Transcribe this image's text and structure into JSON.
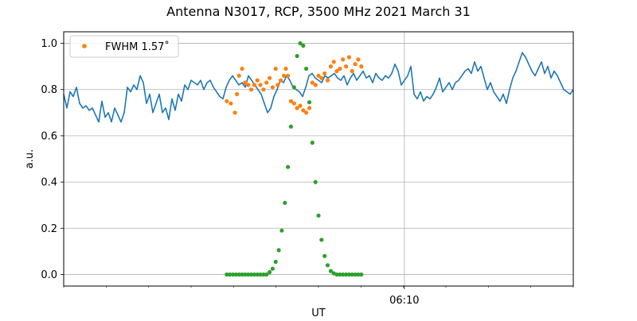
{
  "chart_data": {
    "type": "line",
    "title": "Antenna N3017, RCP, 3500 MHz 2021 March 31",
    "xlabel": "UT",
    "ylabel": "a.u.",
    "x_tick_label": "06:10",
    "x_tick_value": 0.6685,
    "xlim": [
      0,
      1
    ],
    "ylim": [
      -0.05,
      1.05
    ],
    "y_ticks": [
      0.0,
      0.2,
      0.4,
      0.6,
      0.8,
      1.0
    ],
    "y_tick_labels": [
      "0.0",
      "0.2",
      "0.4",
      "0.6",
      "0.8",
      "1.0"
    ],
    "grid": true,
    "legend": {
      "label": "FWHM 1.57˚",
      "placement": "top-left"
    },
    "colors": {
      "line": "#1f77b4",
      "fwhm": "#ff7f0e",
      "beam": "#2ca02c",
      "grid": "#b0b0b0"
    },
    "series": [
      {
        "kind": "line",
        "color": "#1f77b4",
        "x": [
          0.0,
          0.0063,
          0.0125,
          0.0188,
          0.025,
          0.0313,
          0.0375,
          0.0438,
          0.05,
          0.0563,
          0.0625,
          0.0688,
          0.075,
          0.0813,
          0.0875,
          0.0938,
          0.1,
          0.1063,
          0.1125,
          0.1188,
          0.125,
          0.1313,
          0.1375,
          0.1438,
          0.15,
          0.1563,
          0.1625,
          0.1688,
          0.175,
          0.1813,
          0.1875,
          0.1938,
          0.2,
          0.2063,
          0.2125,
          0.2188,
          0.225,
          0.2313,
          0.2375,
          0.2438,
          0.25,
          0.2563,
          0.2625,
          0.2688,
          0.275,
          0.2813,
          0.2875,
          0.2938,
          0.3,
          0.3063,
          0.3125,
          0.3188,
          0.325,
          0.3313,
          0.3375,
          0.3438,
          0.35,
          0.3563,
          0.3625,
          0.3688,
          0.375,
          0.3813,
          0.3875,
          0.3938,
          0.4,
          0.4063,
          0.4125,
          0.4188,
          0.425,
          0.4313,
          0.4375,
          0.4438,
          0.45,
          0.4563,
          0.4625,
          0.4688,
          0.475,
          0.4813,
          0.4875,
          0.4938,
          0.5,
          0.5063,
          0.5125,
          0.5188,
          0.525,
          0.5313,
          0.5375,
          0.5438,
          0.55,
          0.5563,
          0.5625,
          0.5688,
          0.575,
          0.5813,
          0.5875,
          0.5938,
          0.6,
          0.6063,
          0.6125,
          0.6188,
          0.625,
          0.6313,
          0.6375,
          0.6438,
          0.65,
          0.6563,
          0.6625,
          0.6688,
          0.675,
          0.6813,
          0.6875,
          0.6938,
          0.7,
          0.7063,
          0.7125,
          0.7188,
          0.725,
          0.7313,
          0.7375,
          0.7438,
          0.75,
          0.7563,
          0.7625,
          0.7688,
          0.775,
          0.7813,
          0.7875,
          0.7938,
          0.8,
          0.8063,
          0.8125,
          0.8188,
          0.825,
          0.8313,
          0.8375,
          0.8438,
          0.85,
          0.8563,
          0.8625,
          0.8688,
          0.875,
          0.8813,
          0.8875,
          0.8938,
          0.9,
          0.9063,
          0.9125,
          0.9188,
          0.925,
          0.9313,
          0.9375,
          0.9438,
          0.95,
          0.9563,
          0.9625,
          0.9688,
          0.975,
          0.9813,
          0.9875,
          0.9938,
          1.0
        ],
        "y": [
          0.78,
          0.72,
          0.79,
          0.77,
          0.81,
          0.74,
          0.72,
          0.73,
          0.71,
          0.72,
          0.69,
          0.66,
          0.75,
          0.68,
          0.7,
          0.66,
          0.72,
          0.69,
          0.66,
          0.7,
          0.81,
          0.79,
          0.82,
          0.8,
          0.86,
          0.83,
          0.74,
          0.78,
          0.7,
          0.74,
          0.78,
          0.7,
          0.72,
          0.67,
          0.76,
          0.71,
          0.78,
          0.75,
          0.82,
          0.8,
          0.84,
          0.83,
          0.82,
          0.84,
          0.8,
          0.83,
          0.84,
          0.81,
          0.79,
          0.77,
          0.76,
          0.81,
          0.84,
          0.86,
          0.84,
          0.82,
          0.83,
          0.81,
          0.86,
          0.84,
          0.82,
          0.8,
          0.78,
          0.74,
          0.7,
          0.72,
          0.77,
          0.8,
          0.84,
          0.83,
          0.86,
          0.84,
          0.81,
          0.8,
          0.79,
          0.77,
          0.81,
          0.86,
          0.87,
          0.85,
          0.84,
          0.83,
          0.86,
          0.85,
          0.86,
          0.87,
          0.85,
          0.84,
          0.86,
          0.82,
          0.85,
          0.87,
          0.84,
          0.86,
          0.88,
          0.85,
          0.86,
          0.83,
          0.87,
          0.85,
          0.84,
          0.86,
          0.85,
          0.87,
          0.91,
          0.88,
          0.82,
          0.84,
          0.86,
          0.9,
          0.78,
          0.76,
          0.79,
          0.75,
          0.77,
          0.76,
          0.78,
          0.81,
          0.85,
          0.79,
          0.81,
          0.83,
          0.8,
          0.83,
          0.84,
          0.86,
          0.88,
          0.89,
          0.87,
          0.92,
          0.88,
          0.9,
          0.85,
          0.8,
          0.83,
          0.79,
          0.77,
          0.75,
          0.78,
          0.74,
          0.8,
          0.85,
          0.88,
          0.92,
          0.96,
          0.94,
          0.91,
          0.88,
          0.86,
          0.89,
          0.92,
          0.87,
          0.9,
          0.85,
          0.88,
          0.86,
          0.83,
          0.8,
          0.79,
          0.78,
          0.8
        ]
      },
      {
        "kind": "scatter",
        "name": "FWHM 1.57˚",
        "color": "#ff7f0e",
        "x": [
          0.32,
          0.328,
          0.336,
          0.34,
          0.344,
          0.35,
          0.356,
          0.362,
          0.368,
          0.374,
          0.38,
          0.386,
          0.392,
          0.398,
          0.404,
          0.41,
          0.416,
          0.42,
          0.426,
          0.432,
          0.436,
          0.44,
          0.446,
          0.452,
          0.458,
          0.464,
          0.47,
          0.476,
          0.482,
          0.488,
          0.494,
          0.5,
          0.506,
          0.512,
          0.518,
          0.524,
          0.53,
          0.536,
          0.542,
          0.548,
          0.554,
          0.56,
          0.566,
          0.572,
          0.578,
          0.584
        ],
        "y": [
          0.75,
          0.74,
          0.7,
          0.78,
          0.86,
          0.89,
          0.83,
          0.82,
          0.8,
          0.82,
          0.84,
          0.82,
          0.8,
          0.83,
          0.85,
          0.81,
          0.89,
          0.82,
          0.84,
          0.86,
          0.89,
          0.86,
          0.75,
          0.74,
          0.72,
          0.73,
          0.71,
          0.7,
          0.72,
          0.83,
          0.82,
          0.86,
          0.85,
          0.87,
          0.84,
          0.9,
          0.92,
          0.88,
          0.89,
          0.93,
          0.9,
          0.94,
          0.88,
          0.91,
          0.93,
          0.9
        ]
      },
      {
        "kind": "scatter",
        "color": "#2ca02c",
        "x": [
          0.32,
          0.326,
          0.332,
          0.338,
          0.344,
          0.35,
          0.356,
          0.362,
          0.368,
          0.374,
          0.38,
          0.386,
          0.392,
          0.398,
          0.404,
          0.41,
          0.416,
          0.422,
          0.428,
          0.434,
          0.44,
          0.446,
          0.452,
          0.458,
          0.464,
          0.47,
          0.476,
          0.482,
          0.488,
          0.494,
          0.5,
          0.506,
          0.512,
          0.518,
          0.524,
          0.53,
          0.536,
          0.542,
          0.548,
          0.554,
          0.56,
          0.566,
          0.572,
          0.578,
          0.584
        ],
        "y": [
          0.0,
          0.0,
          0.0,
          0.0,
          0.0,
          0.0,
          0.0,
          0.0,
          0.0,
          0.0,
          0.0,
          0.0,
          0.0,
          0.0,
          0.01,
          0.025,
          0.055,
          0.105,
          0.19,
          0.31,
          0.465,
          0.64,
          0.81,
          0.945,
          1.0,
          0.99,
          0.89,
          0.745,
          0.57,
          0.4,
          0.255,
          0.15,
          0.08,
          0.04,
          0.015,
          0.005,
          0.0,
          0.0,
          0.0,
          0.0,
          0.0,
          0.0,
          0.0,
          0.0,
          0.0
        ]
      }
    ]
  }
}
